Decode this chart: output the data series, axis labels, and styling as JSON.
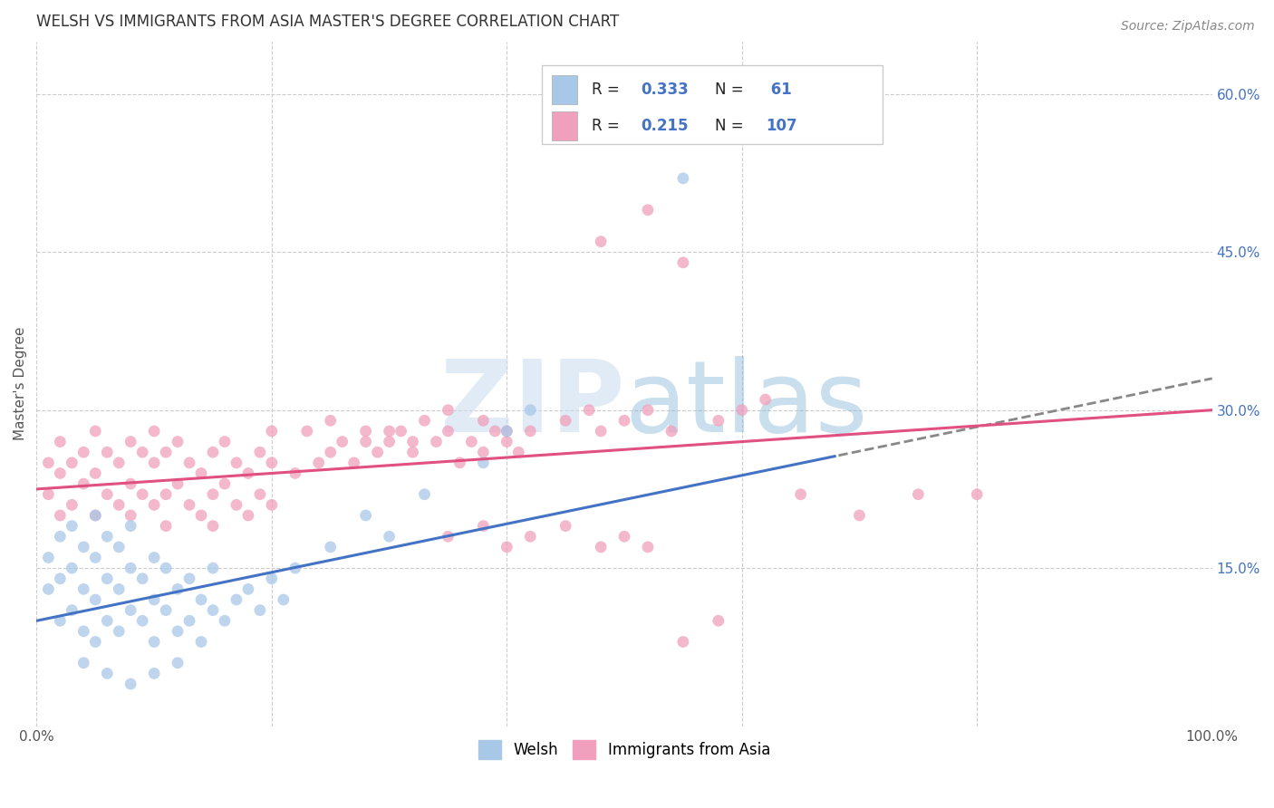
{
  "title": "WELSH VS IMMIGRANTS FROM ASIA MASTER'S DEGREE CORRELATION CHART",
  "source": "Source: ZipAtlas.com",
  "ylabel": "Master's Degree",
  "xlim": [
    0,
    100
  ],
  "ylim": [
    0,
    65
  ],
  "yticks": [
    15,
    30,
    45,
    60
  ],
  "yticklabels": [
    "15.0%",
    "30.0%",
    "45.0%",
    "60.0%"
  ],
  "welsh_color": "#A8C8E8",
  "asian_color": "#F0A0BC",
  "welsh_line_color": "#4472C4",
  "asian_line_color": "#E05080",
  "background_color": "#ffffff",
  "grid_color": "#cccccc",
  "title_color": "#333333",
  "legend_text_color": "#222222",
  "legend_value_color": "#4472c4",
  "watermark_color": "#C0D8EE",
  "welsh_R": "0.333",
  "welsh_N": "61",
  "asian_R": "0.215",
  "asian_N": "107",
  "welsh_line_start_y": 10.0,
  "welsh_line_end_y": 33.0,
  "welsh_line_solid_end_x": 68,
  "asian_line_start_y": 22.5,
  "asian_line_end_y": 30.0
}
